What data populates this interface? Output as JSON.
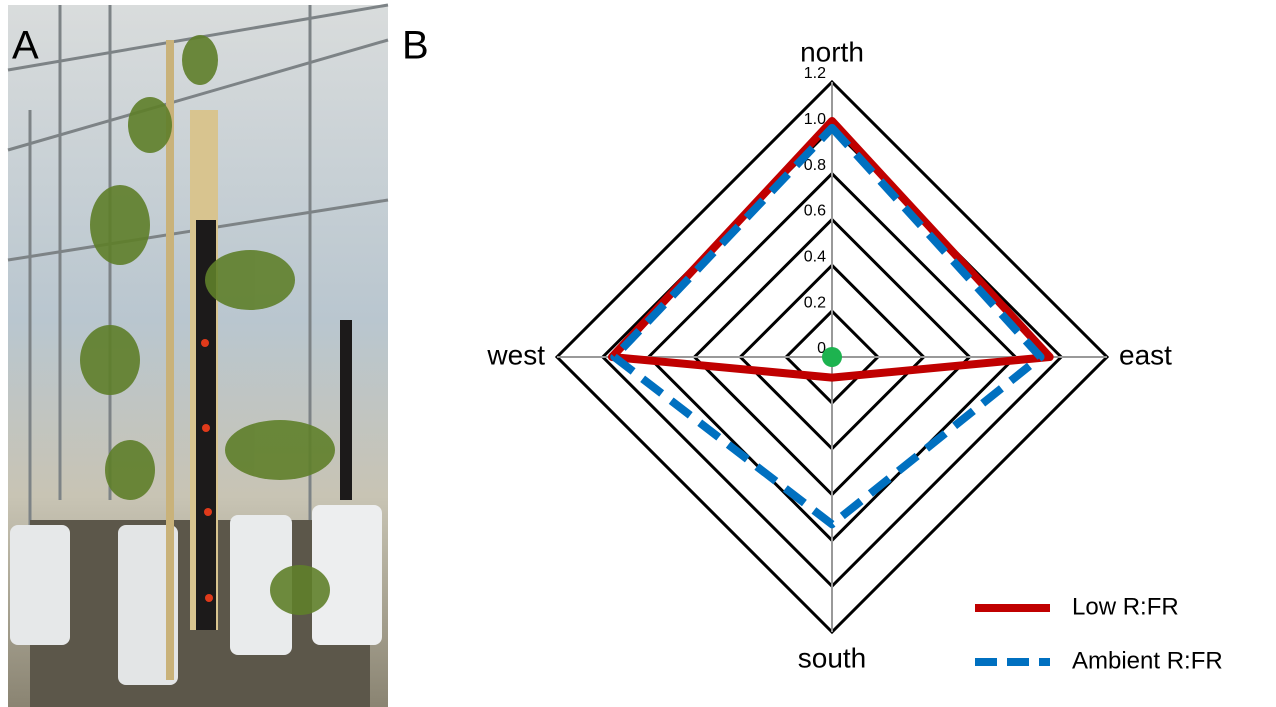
{
  "panels": [
    "A",
    "B"
  ],
  "chart_data": {
    "type": "radar",
    "categories": [
      "north",
      "east",
      "south",
      "west"
    ],
    "ylim": [
      0,
      1.2
    ],
    "yticks": [
      0,
      0.2,
      0.4,
      0.6,
      0.8,
      {
        "value": 1,
        "label": "1.0"
      },
      1.2
    ],
    "grid": true,
    "legend": "lower right",
    "series": [
      {
        "name": "Low R:FR",
        "color": "#c00000",
        "linestyle": "solid",
        "values": [
          1.03,
          0.95,
          0.09,
          0.96
        ]
      },
      {
        "name": "Ambient R:FR",
        "color": "#0070c0",
        "linestyle": "dashed",
        "values": [
          1.0,
          0.91,
          0.73,
          0.95
        ]
      }
    ]
  }
}
